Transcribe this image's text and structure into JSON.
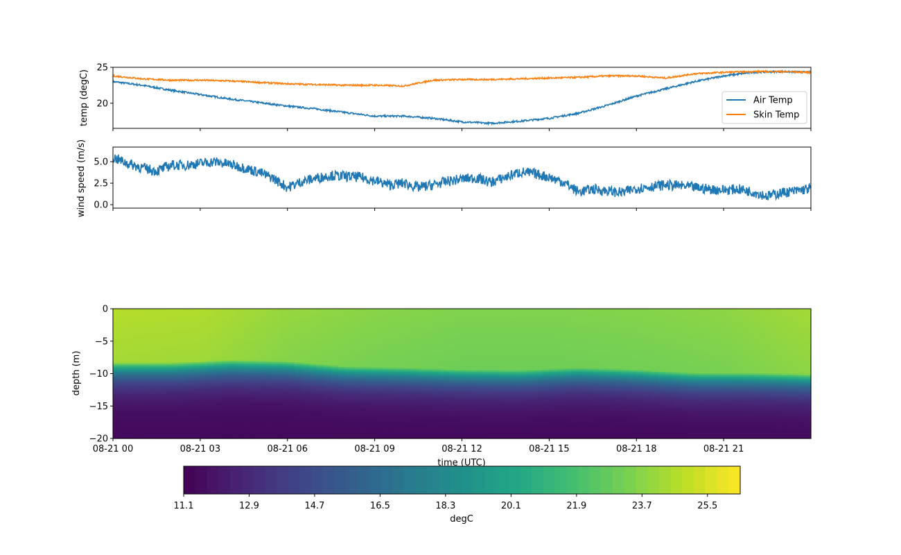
{
  "colors": {
    "air_temp": "#1f77b4",
    "skin_temp": "#ff7f0e",
    "wind": "#1f77b4",
    "colormap": "viridis"
  },
  "chart_data": [
    {
      "type": "line",
      "panel": "temperature",
      "ylabel": "temp (degC)",
      "ylim": [
        16.5,
        25
      ],
      "yticks": [
        {
          "value": 20,
          "label": "20"
        },
        {
          "value": 25,
          "label": "25"
        }
      ],
      "legend": {
        "placement": "lower-right"
      },
      "series": [
        {
          "name": "Air Temp",
          "x_hours": [
            0,
            1,
            2,
            3,
            4,
            5,
            6,
            7,
            8,
            9,
            10,
            11,
            12,
            13,
            14,
            15,
            16,
            17,
            18,
            19,
            20,
            21,
            22,
            23,
            24
          ],
          "values": [
            23.0,
            22.5,
            21.8,
            21.2,
            20.6,
            20.1,
            19.6,
            19.2,
            18.7,
            18.2,
            18.2,
            17.9,
            17.4,
            17.2,
            17.5,
            17.9,
            18.6,
            19.7,
            21.0,
            22.0,
            23.0,
            23.8,
            24.3,
            24.4,
            24.3
          ]
        },
        {
          "name": "Skin Temp",
          "x_hours": [
            0,
            1,
            2,
            3,
            4,
            5,
            6,
            7,
            8,
            9,
            10,
            11,
            12,
            13,
            14,
            15,
            16,
            17,
            18,
            19,
            20,
            21,
            22,
            23,
            24
          ],
          "values": [
            23.8,
            23.4,
            23.2,
            23.2,
            23.1,
            22.9,
            22.7,
            22.6,
            22.5,
            22.5,
            22.4,
            23.2,
            23.3,
            23.3,
            23.4,
            23.5,
            23.6,
            23.8,
            23.8,
            23.5,
            24.1,
            24.3,
            24.4,
            24.4,
            24.3
          ]
        }
      ]
    },
    {
      "type": "line",
      "panel": "wind",
      "ylabel": "wind speed (m/s)",
      "ylim": [
        -0.4,
        6.7
      ],
      "yticks": [
        {
          "value": 0,
          "label": "0.0"
        },
        {
          "value": 2.5,
          "label": "2.5"
        },
        {
          "value": 5,
          "label": "5.0"
        }
      ],
      "series": [
        {
          "x_hours": [
            0,
            0.5,
            1,
            1.5,
            2,
            2.5,
            3,
            3.5,
            4,
            4.5,
            5,
            5.5,
            6,
            6.5,
            7,
            7.5,
            8,
            8.5,
            9,
            9.5,
            10,
            10.5,
            11,
            11.5,
            12,
            12.5,
            13,
            13.5,
            14,
            14.5,
            15,
            15.5,
            16,
            16.5,
            17,
            17.5,
            18,
            18.5,
            19,
            19.5,
            20,
            20.5,
            21,
            21.5,
            22,
            22.5,
            23,
            23.5,
            24
          ],
          "values": [
            5.5,
            4.8,
            4.3,
            3.9,
            4.6,
            4.6,
            4.8,
            5.0,
            4.7,
            4.3,
            3.8,
            3.1,
            2.0,
            2.7,
            3.1,
            3.4,
            3.3,
            3.2,
            2.8,
            2.3,
            2.5,
            2.0,
            2.3,
            2.7,
            3.0,
            3.1,
            2.6,
            3.2,
            3.8,
            3.6,
            3.2,
            2.6,
            1.5,
            1.8,
            1.6,
            1.4,
            1.9,
            2.1,
            2.3,
            2.2,
            2.0,
            1.8,
            1.7,
            1.8,
            1.5,
            1.0,
            1.4,
            1.6,
            1.9
          ]
        }
      ]
    },
    {
      "type": "heatmap",
      "panel": "water-temperature",
      "xlabel": "time (UTC)",
      "ylabel": "depth (m)",
      "ylim": [
        -20,
        0
      ],
      "yticks": [
        {
          "value": 0,
          "label": "0"
        },
        {
          "value": -5,
          "label": "−5"
        },
        {
          "value": -10,
          "label": "−10"
        },
        {
          "value": -15,
          "label": "−15"
        },
        {
          "value": -20,
          "label": "−20"
        }
      ],
      "xlim_hours": [
        0,
        24
      ],
      "xticks": [
        {
          "hour": 0,
          "label": "08-21 00"
        },
        {
          "hour": 3,
          "label": "08-21 03"
        },
        {
          "hour": 6,
          "label": "08-21 06"
        },
        {
          "hour": 9,
          "label": "08-21 09"
        },
        {
          "hour": 12,
          "label": "08-21 12"
        },
        {
          "hour": 15,
          "label": "08-21 15"
        },
        {
          "hour": 18,
          "label": "08-21 18"
        },
        {
          "hour": 21,
          "label": "08-21 21"
        }
      ],
      "thermocline_depth_by_hour": {
        "x_hours": [
          0,
          2,
          4,
          6,
          8,
          10,
          12,
          14,
          16,
          18,
          20,
          22,
          24
        ],
        "depths": [
          -8.8,
          -8.8,
          -8.4,
          -8.6,
          -9.4,
          -9.6,
          -9.9,
          -10.0,
          -9.6,
          -9.9,
          -10.4,
          -10.4,
          -10.6
        ]
      },
      "surface_temp_by_hour": {
        "x_hours": [
          0,
          3,
          6,
          9,
          12,
          15,
          18,
          21,
          24
        ],
        "values": [
          24.7,
          24.6,
          24.0,
          23.7,
          23.5,
          23.5,
          23.6,
          23.8,
          24.3
        ]
      },
      "bottom_temp": 11.4,
      "colorbar": {
        "label": "degC",
        "range": [
          11.1,
          26.4
        ],
        "ticks": [
          {
            "value": 11.1,
            "label": "11.1"
          },
          {
            "value": 12.9,
            "label": "12.9"
          },
          {
            "value": 14.7,
            "label": "14.7"
          },
          {
            "value": 16.5,
            "label": "16.5"
          },
          {
            "value": 18.3,
            "label": "18.3"
          },
          {
            "value": 20.1,
            "label": "20.1"
          },
          {
            "value": 21.9,
            "label": "21.9"
          },
          {
            "value": 23.7,
            "label": "23.7"
          },
          {
            "value": 25.5,
            "label": "25.5"
          }
        ]
      }
    }
  ]
}
